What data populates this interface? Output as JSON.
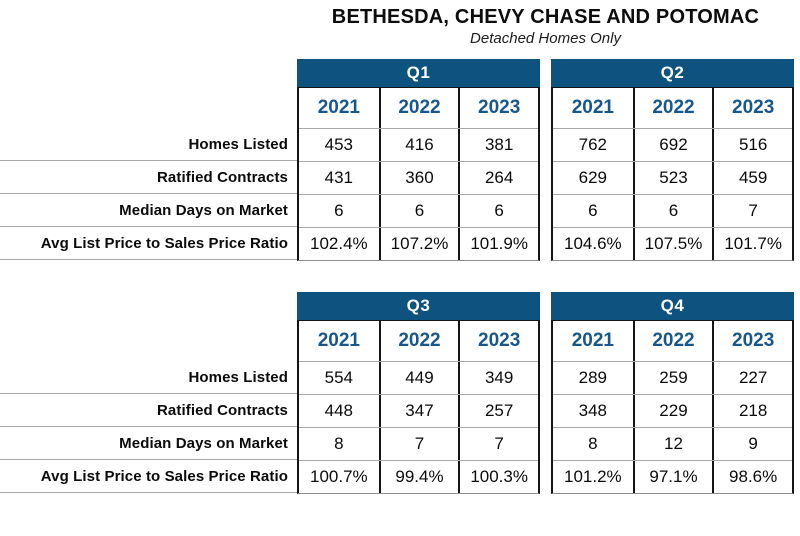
{
  "header": {
    "title": "BETHESDA, CHEVY CHASE AND POTOMAC",
    "subtitle": "Detached Homes Only"
  },
  "colors": {
    "quarter_bar_blue": "#0e5380",
    "year_text_blue": "#17578e",
    "grid_line_black": "#151515",
    "row_separator_gray": "#a8a8a8"
  },
  "chart_data": {
    "type": "table",
    "title": "BETHESDA, CHEVY CHASE AND POTOMAC",
    "subtitle": "Detached Homes Only",
    "row_labels": [
      "Homes Listed",
      "Ratified Contracts",
      "Median Days on Market",
      "Avg List Price to Sales Price Ratio"
    ],
    "years": [
      "2021",
      "2022",
      "2023"
    ],
    "quarters": [
      {
        "label": "Q1",
        "rows": [
          [
            "453",
            "416",
            "381"
          ],
          [
            "431",
            "360",
            "264"
          ],
          [
            "6",
            "6",
            "6"
          ],
          [
            "102.4%",
            "107.2%",
            "101.9%"
          ]
        ]
      },
      {
        "label": "Q2",
        "rows": [
          [
            "762",
            "692",
            "516"
          ],
          [
            "629",
            "523",
            "459"
          ],
          [
            "6",
            "6",
            "7"
          ],
          [
            "104.6%",
            "107.5%",
            "101.7%"
          ]
        ]
      },
      {
        "label": "Q3",
        "rows": [
          [
            "554",
            "449",
            "349"
          ],
          [
            "448",
            "347",
            "257"
          ],
          [
            "8",
            "7",
            "7"
          ],
          [
            "100.7%",
            "99.4%",
            "100.3%"
          ]
        ]
      },
      {
        "label": "Q4",
        "rows": [
          [
            "289",
            "259",
            "227"
          ],
          [
            "348",
            "229",
            "218"
          ],
          [
            "8",
            "12",
            "9"
          ],
          [
            "101.2%",
            "97.1%",
            "98.6%"
          ]
        ]
      }
    ]
  }
}
